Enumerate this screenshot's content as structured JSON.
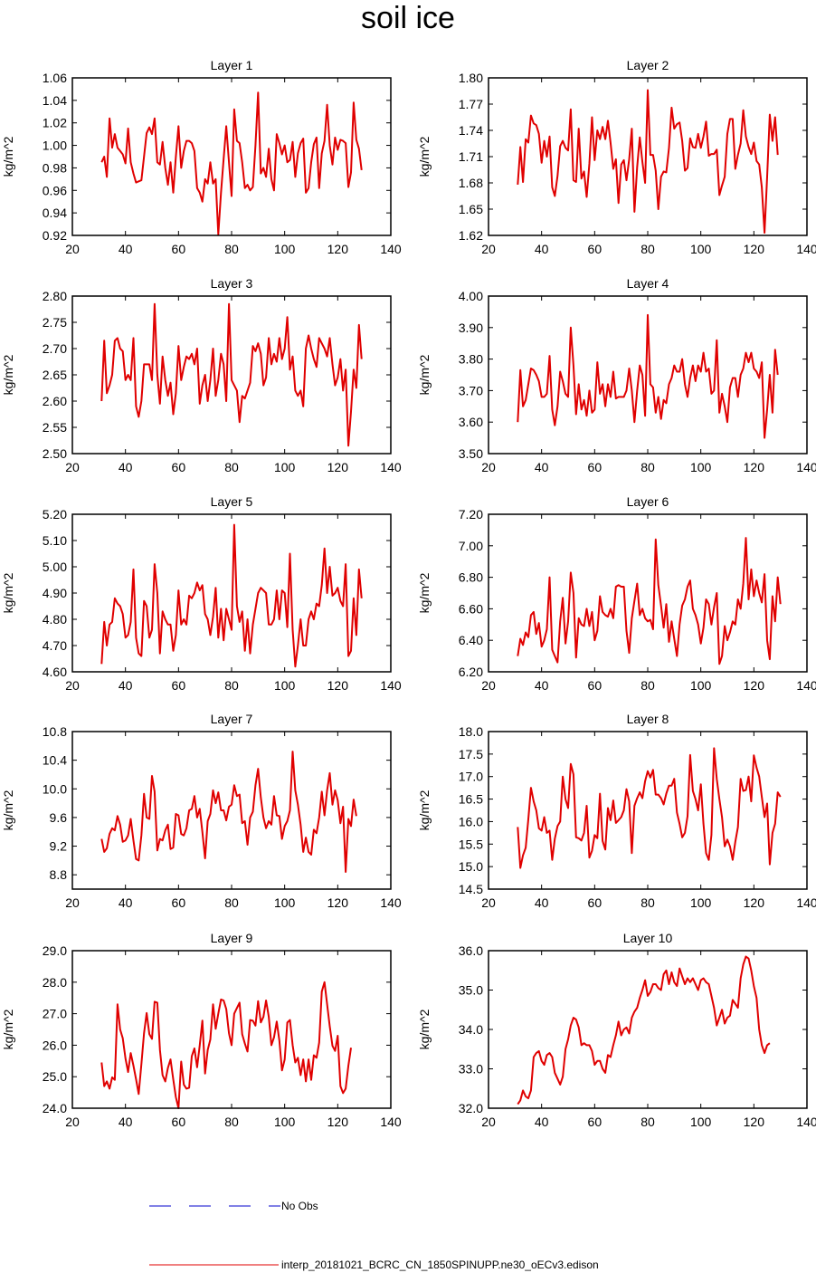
{
  "title": "soil ice",
  "ylabel": "kg/m^2",
  "xticks": [
    20,
    40,
    60,
    80,
    100,
    120,
    140
  ],
  "xlim": [
    20,
    140
  ],
  "legend": [
    {
      "label": "No Obs",
      "color": "#0000cc",
      "dash": true
    },
    {
      "label": "interp_20181021_BCRC_CN_1850SPINUPP.ne30_oECv3.edison",
      "color": "#e00000",
      "dash": false
    }
  ],
  "chart_data": [
    {
      "type": "line",
      "title": "Layer 1",
      "ylabel": "kg/m^2",
      "ylim": [
        0.92,
        1.06
      ],
      "yticks": [
        "0.92",
        "0.94",
        "0.96",
        "0.98",
        "1.00",
        "1.02",
        "1.04",
        "1.06"
      ],
      "x_start": 31,
      "values": [
        0.985,
        0.99,
        0.972,
        1.024,
        0.998,
        1.01,
        0.998,
        0.995,
        0.992,
        0.984,
        1.015,
        0.985,
        0.975,
        0.967,
        0.968,
        0.969,
        0.99,
        1.011,
        1.016,
        1.01,
        1.024,
        0.985,
        0.983,
        1.003,
        0.98,
        0.965,
        0.985,
        0.958,
        0.99,
        1.017,
        0.98,
        0.995,
        1.004,
        1.004,
        1.002,
        0.995,
        0.962,
        0.958,
        0.95,
        0.97,
        0.966,
        0.985,
        0.966,
        0.97,
        0.921,
        0.958,
        0.988,
        1.017,
        0.985,
        0.955,
        1.032,
        1.004,
        1.002,
        0.985,
        0.962,
        0.965,
        0.96,
        0.963,
        1.0,
        1.047,
        0.975,
        0.98,
        0.972,
        0.997,
        0.97,
        0.96,
        1.01,
        1.002,
        0.992,
        1.0,
        0.985,
        0.987,
        1.003,
        0.972,
        0.993,
        1.002,
        1.006,
        0.958,
        0.962,
        0.985,
        1.001,
        1.007,
        0.962,
        0.993,
        1.004,
        1.036,
        1.0,
        0.983,
        1.007,
        0.996,
        1.005,
        1.004,
        1.002,
        0.963,
        0.976,
        1.038,
        1.005,
        0.997,
        0.978
      ]
    },
    {
      "type": "line",
      "title": "Layer 2",
      "ylabel": "kg/m^2",
      "ylim": [
        1.62,
        1.8
      ],
      "yticks": [
        "1.62",
        "1.65",
        "1.68",
        "1.71",
        "1.74",
        "1.77",
        "1.80"
      ],
      "x_start": 31,
      "values": [
        1.678,
        1.721,
        1.681,
        1.73,
        1.726,
        1.757,
        1.748,
        1.746,
        1.736,
        1.703,
        1.728,
        1.71,
        1.733,
        1.675,
        1.665,
        1.688,
        1.722,
        1.728,
        1.72,
        1.717,
        1.764,
        1.683,
        1.681,
        1.742,
        1.685,
        1.693,
        1.664,
        1.702,
        1.755,
        1.706,
        1.74,
        1.73,
        1.744,
        1.73,
        1.751,
        1.726,
        1.696,
        1.707,
        1.657,
        1.701,
        1.706,
        1.683,
        1.707,
        1.742,
        1.647,
        1.698,
        1.732,
        1.704,
        1.68,
        1.786,
        1.712,
        1.712,
        1.694,
        1.65,
        1.687,
        1.693,
        1.692,
        1.72,
        1.766,
        1.742,
        1.747,
        1.749,
        1.728,
        1.694,
        1.697,
        1.731,
        1.721,
        1.72,
        1.736,
        1.72,
        1.733,
        1.75,
        1.711,
        1.713,
        1.713,
        1.718,
        1.666,
        1.677,
        1.687,
        1.736,
        1.753,
        1.753,
        1.696,
        1.712,
        1.725,
        1.763,
        1.733,
        1.721,
        1.713,
        1.726,
        1.705,
        1.701,
        1.675,
        1.623,
        1.687,
        1.758,
        1.728,
        1.755,
        1.712
      ]
    },
    {
      "type": "line",
      "title": "Layer 3",
      "ylabel": "kg/m^2",
      "ylim": [
        2.5,
        2.8
      ],
      "yticks": [
        "2.50",
        "2.55",
        "2.60",
        "2.65",
        "2.70",
        "2.75",
        "2.80"
      ],
      "x_start": 31,
      "values": [
        2.6,
        2.715,
        2.615,
        2.63,
        2.65,
        2.715,
        2.72,
        2.7,
        2.695,
        2.64,
        2.65,
        2.64,
        2.72,
        2.59,
        2.57,
        2.6,
        2.67,
        2.67,
        2.67,
        2.64,
        2.785,
        2.65,
        2.595,
        2.685,
        2.64,
        2.61,
        2.635,
        2.575,
        2.615,
        2.705,
        2.64,
        2.665,
        2.685,
        2.68,
        2.69,
        2.67,
        2.7,
        2.595,
        2.63,
        2.65,
        2.6,
        2.64,
        2.7,
        2.61,
        2.64,
        2.69,
        2.67,
        2.6,
        2.785,
        2.64,
        2.63,
        2.62,
        2.56,
        2.61,
        2.605,
        2.62,
        2.635,
        2.705,
        2.695,
        2.71,
        2.69,
        2.63,
        2.645,
        2.72,
        2.67,
        2.69,
        2.675,
        2.72,
        2.68,
        2.7,
        2.76,
        2.66,
        2.685,
        2.62,
        2.61,
        2.62,
        2.59,
        2.7,
        2.725,
        2.7,
        2.68,
        2.665,
        2.72,
        2.71,
        2.7,
        2.685,
        2.72,
        2.67,
        2.63,
        2.645,
        2.68,
        2.62,
        2.66,
        2.515,
        2.58,
        2.66,
        2.625,
        2.745,
        2.68
      ]
    },
    {
      "type": "line",
      "title": "Layer 4",
      "ylabel": "kg/m^2",
      "ylim": [
        3.5,
        4.0
      ],
      "yticks": [
        "3.50",
        "3.60",
        "3.70",
        "3.80",
        "3.90",
        "4.00"
      ],
      "x_start": 31,
      "values": [
        3.6,
        3.765,
        3.65,
        3.67,
        3.72,
        3.77,
        3.765,
        3.75,
        3.73,
        3.68,
        3.68,
        3.69,
        3.81,
        3.64,
        3.59,
        3.65,
        3.76,
        3.73,
        3.69,
        3.68,
        3.9,
        3.78,
        3.625,
        3.72,
        3.64,
        3.67,
        3.62,
        3.7,
        3.63,
        3.64,
        3.79,
        3.69,
        3.72,
        3.65,
        3.72,
        3.68,
        3.76,
        3.675,
        3.68,
        3.68,
        3.68,
        3.7,
        3.77,
        3.7,
        3.6,
        3.7,
        3.78,
        3.75,
        3.62,
        3.94,
        3.72,
        3.71,
        3.63,
        3.68,
        3.61,
        3.67,
        3.66,
        3.72,
        3.74,
        3.78,
        3.76,
        3.76,
        3.8,
        3.72,
        3.68,
        3.74,
        3.78,
        3.73,
        3.78,
        3.76,
        3.82,
        3.76,
        3.77,
        3.69,
        3.7,
        3.86,
        3.63,
        3.69,
        3.65,
        3.6,
        3.71,
        3.74,
        3.74,
        3.68,
        3.75,
        3.77,
        3.82,
        3.79,
        3.82,
        3.77,
        3.76,
        3.74,
        3.79,
        3.55,
        3.64,
        3.75,
        3.63,
        3.83,
        3.75
      ]
    },
    {
      "type": "line",
      "title": "Layer 5",
      "ylabel": "kg/m^2",
      "ylim": [
        4.6,
        5.2
      ],
      "yticks": [
        "4.60",
        "4.70",
        "4.80",
        "4.90",
        "5.00",
        "5.10",
        "5.20"
      ],
      "x_start": 31,
      "values": [
        4.63,
        4.79,
        4.7,
        4.78,
        4.79,
        4.88,
        4.86,
        4.85,
        4.82,
        4.73,
        4.74,
        4.79,
        4.99,
        4.73,
        4.67,
        4.66,
        4.87,
        4.85,
        4.73,
        4.76,
        5.01,
        4.9,
        4.67,
        4.83,
        4.8,
        4.78,
        4.78,
        4.68,
        4.74,
        4.91,
        4.78,
        4.8,
        4.78,
        4.89,
        4.88,
        4.9,
        4.94,
        4.91,
        4.93,
        4.82,
        4.8,
        4.74,
        4.81,
        4.92,
        4.73,
        4.84,
        4.72,
        4.84,
        4.8,
        4.76,
        5.16,
        4.85,
        4.79,
        4.83,
        4.68,
        4.8,
        4.67,
        4.78,
        4.84,
        4.9,
        4.92,
        4.91,
        4.9,
        4.78,
        4.78,
        4.8,
        4.91,
        4.8,
        4.91,
        4.9,
        4.77,
        5.05,
        4.76,
        4.62,
        4.7,
        4.8,
        4.7,
        4.7,
        4.8,
        4.83,
        4.8,
        4.86,
        4.85,
        4.93,
        5.07,
        4.9,
        5.0,
        4.89,
        4.9,
        4.92,
        4.87,
        4.85,
        5.01,
        4.66,
        4.68,
        4.88,
        4.74,
        4.99,
        4.88
      ]
    },
    {
      "type": "line",
      "title": "Layer 6",
      "ylabel": "kg/m^2",
      "ylim": [
        6.2,
        7.2
      ],
      "yticks": [
        "6.20",
        "6.40",
        "6.60",
        "6.80",
        "7.00",
        "7.20"
      ],
      "x_start": 31,
      "values": [
        6.3,
        6.41,
        6.37,
        6.45,
        6.42,
        6.56,
        6.58,
        6.44,
        6.51,
        6.36,
        6.4,
        6.47,
        6.8,
        6.34,
        6.3,
        6.26,
        6.52,
        6.67,
        6.38,
        6.52,
        6.83,
        6.7,
        6.29,
        6.54,
        6.5,
        6.49,
        6.6,
        6.49,
        6.58,
        6.4,
        6.46,
        6.68,
        6.58,
        6.56,
        6.55,
        6.6,
        6.54,
        6.74,
        6.75,
        6.74,
        6.74,
        6.46,
        6.32,
        6.54,
        6.65,
        6.76,
        6.56,
        6.6,
        6.54,
        6.52,
        6.53,
        6.47,
        7.04,
        6.75,
        6.62,
        6.48,
        6.63,
        6.39,
        6.52,
        6.41,
        6.3,
        6.5,
        6.62,
        6.66,
        6.74,
        6.78,
        6.6,
        6.56,
        6.5,
        6.38,
        6.48,
        6.66,
        6.63,
        6.5,
        6.61,
        6.7,
        6.25,
        6.3,
        6.49,
        6.4,
        6.45,
        6.52,
        6.5,
        6.66,
        6.6,
        6.76,
        7.05,
        6.66,
        6.85,
        6.68,
        6.78,
        6.7,
        6.64,
        6.82,
        6.4,
        6.28,
        6.68,
        6.52,
        6.8,
        6.63
      ]
    },
    {
      "type": "line",
      "title": "Layer 7",
      "ylabel": "kg/m^2",
      "ylim": [
        8.6,
        10.8
      ],
      "yticks": [
        "8.8",
        "9.2",
        "9.6",
        "10.0",
        "10.4",
        "10.8"
      ],
      "x_start": 31,
      "values": [
        9.3,
        9.12,
        9.17,
        9.37,
        9.45,
        9.42,
        9.62,
        9.5,
        9.26,
        9.28,
        9.35,
        9.58,
        9.28,
        9.02,
        9.0,
        9.35,
        9.93,
        9.6,
        9.58,
        10.18,
        9.96,
        9.14,
        9.3,
        9.28,
        9.42,
        9.5,
        9.16,
        9.18,
        9.65,
        9.63,
        9.37,
        9.35,
        9.45,
        9.7,
        9.72,
        9.9,
        9.6,
        9.72,
        9.4,
        9.03,
        9.55,
        9.65,
        9.98,
        9.8,
        9.95,
        9.7,
        9.7,
        9.56,
        9.75,
        9.78,
        10.05,
        9.9,
        9.92,
        9.52,
        9.55,
        9.22,
        9.6,
        9.68,
        10.05,
        10.28,
        9.88,
        9.6,
        9.45,
        9.55,
        9.5,
        9.9,
        9.63,
        9.62,
        9.3,
        9.48,
        9.55,
        9.7,
        10.52,
        9.98,
        9.78,
        9.5,
        9.12,
        9.32,
        9.12,
        9.08,
        9.43,
        9.38,
        9.6,
        9.96,
        9.63,
        9.98,
        10.22,
        9.78,
        9.98,
        9.84,
        9.52,
        9.75,
        8.84,
        9.58,
        9.48,
        9.85,
        9.62
      ]
    },
    {
      "type": "line",
      "title": "Layer 8",
      "ylabel": "kg/m^2",
      "ylim": [
        14.5,
        18.0
      ],
      "yticks": [
        "14.5",
        "15.0",
        "15.5",
        "16.0",
        "16.5",
        "17.0",
        "17.5",
        "18.0"
      ],
      "x_start": 31,
      "values": [
        15.88,
        14.97,
        15.25,
        15.42,
        16.05,
        16.75,
        16.45,
        16.25,
        15.85,
        15.8,
        16.1,
        15.75,
        15.8,
        15.15,
        15.62,
        15.9,
        16.0,
        17.0,
        16.5,
        16.3,
        17.28,
        17.05,
        15.65,
        15.63,
        15.58,
        15.75,
        16.35,
        15.2,
        15.35,
        15.7,
        15.63,
        16.62,
        15.57,
        15.38,
        16.3,
        16.03,
        16.47,
        15.97,
        16.03,
        16.1,
        16.25,
        16.72,
        16.45,
        15.3,
        16.35,
        16.52,
        16.65,
        16.52,
        16.9,
        17.12,
        16.98,
        17.15,
        16.6,
        16.6,
        16.52,
        16.38,
        16.62,
        16.8,
        16.8,
        16.95,
        16.2,
        15.95,
        15.65,
        15.75,
        16.12,
        17.48,
        16.68,
        16.5,
        16.25,
        16.83,
        15.95,
        15.3,
        15.15,
        15.7,
        17.63,
        16.95,
        16.5,
        16.1,
        15.45,
        15.6,
        15.45,
        15.15,
        15.55,
        15.88,
        16.95,
        16.68,
        16.7,
        17.0,
        16.45,
        17.47,
        17.2,
        17.0,
        16.55,
        16.1,
        16.4,
        15.05,
        15.75,
        15.95,
        16.65,
        16.55
      ]
    },
    {
      "type": "line",
      "title": "Layer 9",
      "ylabel": "kg/m^2",
      "ylim": [
        24.0,
        29.0
      ],
      "yticks": [
        "24.0",
        "25.0",
        "26.0",
        "27.0",
        "28.0",
        "29.0"
      ],
      "x_start": 31,
      "values": [
        25.45,
        24.7,
        24.85,
        24.62,
        24.98,
        24.9,
        27.3,
        26.5,
        26.22,
        25.58,
        25.15,
        25.75,
        25.35,
        24.92,
        24.45,
        25.4,
        26.38,
        27.02,
        26.35,
        26.2,
        27.38,
        27.35,
        25.85,
        25.05,
        24.85,
        25.28,
        25.55,
        24.92,
        24.35,
        24.0,
        25.48,
        24.75,
        24.62,
        24.65,
        25.65,
        25.9,
        25.3,
        26.0,
        26.78,
        25.1,
        25.85,
        26.18,
        27.3,
        26.52,
        27.0,
        27.45,
        27.42,
        27.15,
        26.38,
        26.0,
        27.0,
        27.18,
        27.35,
        26.35,
        26.05,
        25.8,
        26.8,
        26.78,
        26.62,
        27.4,
        26.72,
        26.9,
        27.42,
        26.9,
        26.0,
        26.25,
        26.75,
        26.15,
        25.2,
        25.55,
        26.72,
        26.8,
        26.0,
        25.45,
        25.6,
        25.05,
        25.55,
        24.85,
        25.55,
        24.9,
        25.68,
        25.6,
        26.08,
        27.7,
        28.0,
        27.3,
        26.6,
        25.98,
        25.82,
        26.3,
        24.7,
        24.48,
        24.62,
        25.35,
        25.92
      ]
    },
    {
      "type": "line",
      "title": "Layer 10",
      "ylabel": "kg/m^2",
      "ylim": [
        32.0,
        36.0
      ],
      "yticks": [
        "32.0",
        "33.0",
        "34.0",
        "35.0",
        "36.0"
      ],
      "x_start": 31,
      "values": [
        32.1,
        32.2,
        32.45,
        32.3,
        32.25,
        32.45,
        33.3,
        33.4,
        33.45,
        33.2,
        33.1,
        33.35,
        33.4,
        33.3,
        32.9,
        32.75,
        32.6,
        32.8,
        33.5,
        33.75,
        34.1,
        34.3,
        34.25,
        34.05,
        33.6,
        33.65,
        33.6,
        33.6,
        33.45,
        33.1,
        33.2,
        33.2,
        33.0,
        32.9,
        33.35,
        33.3,
        33.6,
        33.85,
        34.2,
        33.85,
        34.0,
        34.05,
        33.9,
        34.3,
        34.45,
        34.55,
        34.8,
        35.0,
        35.25,
        34.85,
        34.95,
        35.15,
        35.15,
        35.05,
        35.0,
        35.4,
        35.5,
        35.15,
        35.45,
        35.2,
        35.1,
        35.55,
        35.35,
        35.15,
        35.3,
        35.2,
        35.3,
        35.15,
        35.0,
        35.25,
        35.3,
        35.2,
        35.15,
        34.85,
        34.55,
        34.1,
        34.3,
        34.5,
        34.15,
        34.3,
        34.35,
        34.75,
        34.65,
        34.55,
        35.3,
        35.65,
        35.85,
        35.8,
        35.5,
        35.1,
        34.8,
        34.0,
        33.6,
        33.4,
        33.6,
        33.65
      ]
    }
  ]
}
